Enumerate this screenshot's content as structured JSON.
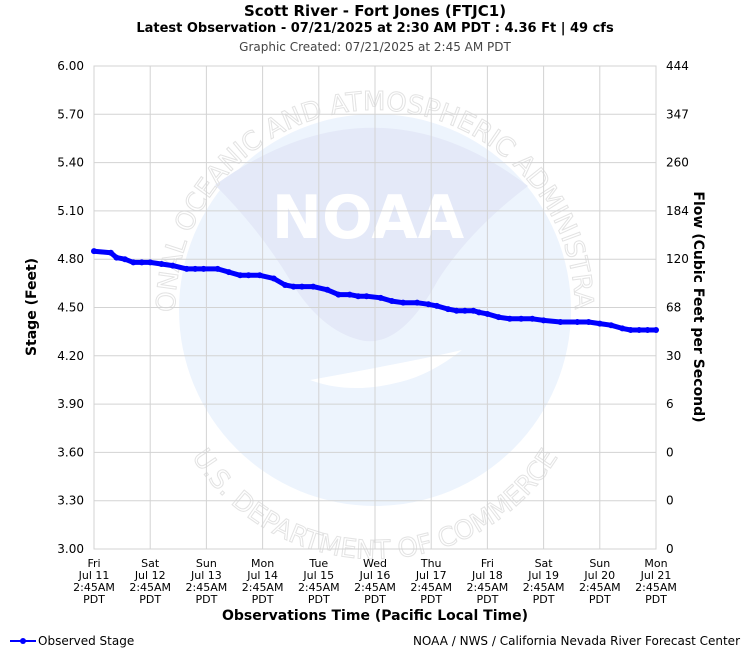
{
  "header": {
    "title": "Scott River - Fort Jones (FTJC1)",
    "subtitle": "Latest Observation - 07/21/2025 at 2:30 AM PDT : 4.36 Ft | 49 cfs",
    "created": "Graphic Created: 07/21/2025 at 2:45 AM PDT"
  },
  "watermark": {
    "logo_text": "NOAA",
    "ring_top": "NATIONAL OCEANIC AND ATMOSPHERIC ADMINISTRATION",
    "ring_bottom": "U.S. DEPARTMENT OF COMMERCE"
  },
  "legend": {
    "label": "Observed Stage",
    "color": "#0000ff"
  },
  "credit": "NOAA / NWS / California Nevada River Forecast Center",
  "chart_data": {
    "type": "line",
    "xlabel": "Observations Time (Pacific Local Time)",
    "ylabel": "Stage (Feet)",
    "y2label": "Flow (Cubic Feet per Second)",
    "ylim": [
      3.0,
      6.0
    ],
    "y_ticks": [
      "3.00",
      "3.30",
      "3.60",
      "3.90",
      "4.20",
      "4.50",
      "4.80",
      "5.10",
      "5.40",
      "5.70",
      "6.00"
    ],
    "y2_ticks": [
      "0",
      "0",
      "0",
      "6",
      "30",
      "68",
      "120",
      "184",
      "260",
      "347",
      "444"
    ],
    "x_ticks": [
      [
        "Fri",
        "Jul 11",
        "2:45AM",
        "PDT"
      ],
      [
        "Sat",
        "Jul 12",
        "2:45AM",
        "PDT"
      ],
      [
        "Sun",
        "Jul 13",
        "2:45AM",
        "PDT"
      ],
      [
        "Mon",
        "Jul 14",
        "2:45AM",
        "PDT"
      ],
      [
        "Tue",
        "Jul 15",
        "2:45AM",
        "PDT"
      ],
      [
        "Wed",
        "Jul 16",
        "2:45AM",
        "PDT"
      ],
      [
        "Thu",
        "Jul 17",
        "2:45AM",
        "PDT"
      ],
      [
        "Fri",
        "Jul 18",
        "2:45AM",
        "PDT"
      ],
      [
        "Sat",
        "Jul 19",
        "2:45AM",
        "PDT"
      ],
      [
        "Sun",
        "Jul 20",
        "2:45AM",
        "PDT"
      ],
      [
        "Mon",
        "Jul 21",
        "2:45AM",
        "PDT"
      ]
    ],
    "grid": true,
    "series": [
      {
        "name": "Observed Stage",
        "color": "#0000ff",
        "x_days_from_start": [
          0.0,
          0.3,
          0.4,
          0.55,
          0.7,
          0.85,
          1.0,
          1.2,
          1.4,
          1.65,
          1.8,
          1.95,
          2.2,
          2.4,
          2.6,
          2.75,
          2.95,
          3.2,
          3.4,
          3.55,
          3.7,
          3.9,
          4.15,
          4.35,
          4.55,
          4.7,
          4.85,
          5.1,
          5.3,
          5.5,
          5.75,
          5.95,
          6.1,
          6.3,
          6.45,
          6.6,
          6.75,
          6.85,
          7.0,
          7.2,
          7.4,
          7.6,
          7.8,
          8.0,
          8.3,
          8.6,
          8.8,
          9.0,
          9.2,
          9.4,
          9.55,
          9.7,
          9.85,
          10.0
        ],
        "values": [
          4.85,
          4.84,
          4.81,
          4.8,
          4.78,
          4.78,
          4.78,
          4.77,
          4.76,
          4.74,
          4.74,
          4.74,
          4.74,
          4.72,
          4.7,
          4.7,
          4.7,
          4.68,
          4.64,
          4.63,
          4.63,
          4.63,
          4.61,
          4.58,
          4.58,
          4.57,
          4.57,
          4.56,
          4.54,
          4.53,
          4.53,
          4.52,
          4.51,
          4.49,
          4.48,
          4.48,
          4.48,
          4.47,
          4.46,
          4.44,
          4.43,
          4.43,
          4.43,
          4.42,
          4.41,
          4.41,
          4.41,
          4.4,
          4.39,
          4.37,
          4.36,
          4.36,
          4.36,
          4.36
        ]
      }
    ]
  }
}
